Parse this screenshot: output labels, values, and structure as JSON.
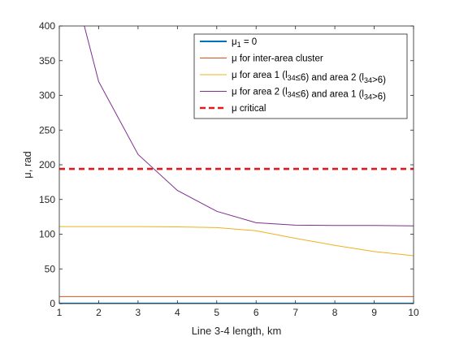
{
  "chart_data": {
    "type": "line",
    "title": "",
    "xlabel": "Line 3-4 length, km",
    "ylabel": "μ, rad",
    "xlim": [
      1,
      10
    ],
    "ylim": [
      0,
      400
    ],
    "xticks": [
      1,
      2,
      3,
      4,
      5,
      6,
      7,
      8,
      9,
      10
    ],
    "yticks": [
      0,
      50,
      100,
      150,
      200,
      250,
      300,
      350,
      400
    ],
    "grid": false,
    "legend_position": "top-right",
    "series": [
      {
        "name": "μ1 = 0",
        "color": "#0072BD",
        "style": "solid",
        "x": [
          1,
          10
        ],
        "y": [
          0,
          0
        ]
      },
      {
        "name": "μ for inter-area cluster",
        "color": "#D95319",
        "style": "solid",
        "x": [
          1,
          10
        ],
        "y": [
          10,
          10
        ]
      },
      {
        "name": "μ for area 1 (l34≤6) and area 2 (l34>6)",
        "color": "#EDB120",
        "style": "solid",
        "x": [
          1,
          2,
          3,
          4,
          5,
          6,
          7,
          8,
          9,
          10
        ],
        "y": [
          111,
          111,
          111,
          110.5,
          109.5,
          105,
          94,
          84,
          75,
          69
        ]
      },
      {
        "name": "μ for area 2 (l34≤6) and area 1 (l34>6)",
        "color": "#7E2F8E",
        "style": "solid",
        "x": [
          1.5,
          2,
          3,
          4,
          5,
          6,
          7,
          8,
          9,
          10
        ],
        "y": [
          430,
          320,
          215,
          163,
          133,
          116.5,
          113,
          112.5,
          112.5,
          112
        ]
      },
      {
        "name": "μ critical",
        "color": "#E31A1C",
        "style": "dashed",
        "x": [
          1,
          10
        ],
        "y": [
          194,
          194
        ]
      }
    ]
  }
}
